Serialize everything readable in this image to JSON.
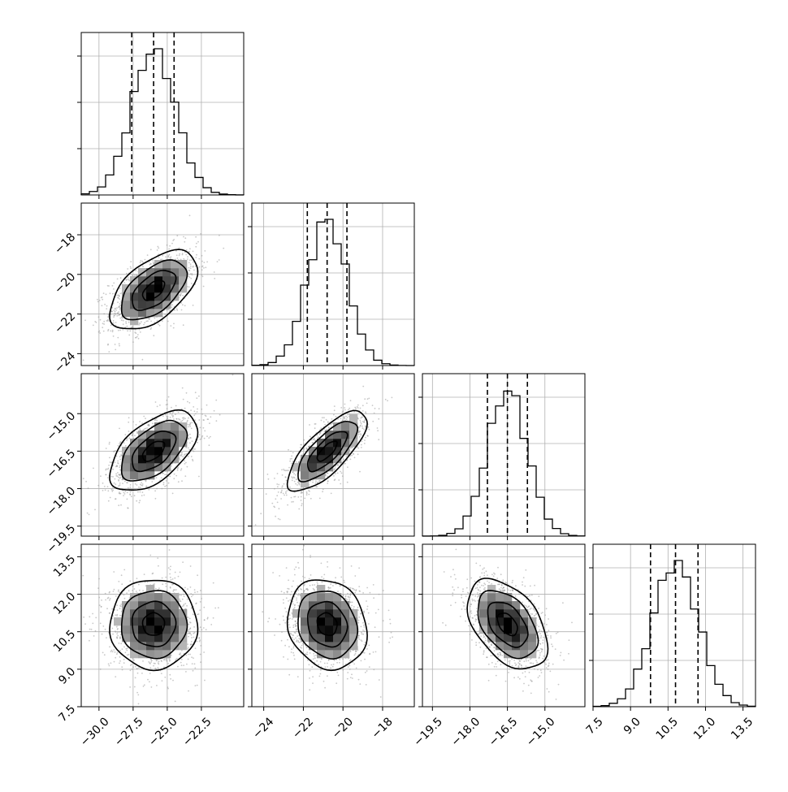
{
  "chart_data": {
    "type": "corner",
    "grid": true,
    "quantile_lines": "dashed",
    "parameters": [
      {
        "index": 0,
        "range": [
          -31.3,
          -19.4
        ],
        "ticks": [
          -30.0,
          -27.5,
          -25.0,
          -22.5
        ],
        "tick_labels": [
          "−30.0",
          "−27.5",
          "−25.0",
          "−22.5"
        ],
        "center": -26.0,
        "sigma": 1.6,
        "quantiles": [
          -27.6,
          -26.0,
          -24.5
        ]
      },
      {
        "index": 1,
        "range": [
          -24.6,
          -16.4
        ],
        "ticks": [
          -24,
          -22,
          -20,
          -18
        ],
        "tick_labels": [
          "−24",
          "−22",
          "−20",
          "−18"
        ],
        "center": -20.8,
        "sigma": 1.0,
        "quantiles": [
          -21.8,
          -20.8,
          -19.8
        ]
      },
      {
        "index": 2,
        "range": [
          -19.9,
          -13.4
        ],
        "ticks": [
          -19.5,
          -18.0,
          -16.5,
          -15.0
        ],
        "tick_labels": [
          "−19.5",
          "−18.0",
          "−16.5",
          "−15.0"
        ],
        "center": -16.5,
        "sigma": 0.8,
        "quantiles": [
          -17.3,
          -16.5,
          -15.7
        ]
      },
      {
        "index": 3,
        "range": [
          7.5,
          14.0
        ],
        "ticks": [
          7.5,
          9.0,
          10.5,
          12.0,
          13.5
        ],
        "tick_labels": [
          "7.5",
          "9.0",
          "10.5",
          "12.0",
          "13.5"
        ],
        "center": 10.8,
        "sigma": 0.9,
        "quantiles": [
          9.8,
          10.8,
          11.7
        ]
      }
    ],
    "correlations": [
      {
        "pair": [
          0,
          1
        ],
        "rho": 0.55
      },
      {
        "pair": [
          0,
          2
        ],
        "rho": 0.55
      },
      {
        "pair": [
          1,
          2
        ],
        "rho": 0.75
      },
      {
        "pair": [
          0,
          3
        ],
        "rho": 0.0
      },
      {
        "pair": [
          1,
          3
        ],
        "rho": -0.15
      },
      {
        "pair": [
          2,
          3
        ],
        "rho": -0.45
      }
    ],
    "contour_levels": [
      0.5,
      1.0,
      1.5,
      2.0
    ]
  }
}
